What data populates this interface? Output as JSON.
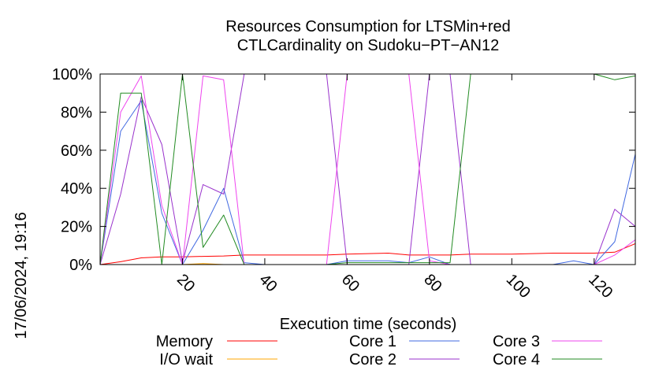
{
  "chart_data": {
    "type": "line",
    "title_line1": "Resources Consumption for LTSMin+red",
    "title_line2": "CTLCardinality on Sudoku−PT−AN12",
    "xlabel": "Execution time (seconds)",
    "ylabel": "",
    "timestamp": "17/06/2024, 19:16",
    "xlim": [
      0,
      130
    ],
    "ylim": [
      0,
      100
    ],
    "x_ticks": [
      20,
      40,
      60,
      80,
      100,
      120
    ],
    "x_tick_labels": [
      "20",
      "40",
      "60",
      "80",
      "100",
      "120"
    ],
    "y_ticks": [
      0,
      20,
      40,
      60,
      80,
      100
    ],
    "y_tick_labels": [
      "0%",
      "20%",
      "40%",
      "60%",
      "80%",
      "100%"
    ],
    "grid": false,
    "legend_position": "bottom",
    "series": [
      {
        "name": "Memory",
        "color": "#ff0000",
        "points": [
          [
            0,
            0
          ],
          [
            5,
            1.5
          ],
          [
            10,
            3.5
          ],
          [
            15,
            4
          ],
          [
            20,
            4
          ],
          [
            25,
            4.3
          ],
          [
            30,
            4.5
          ],
          [
            35,
            5
          ],
          [
            45,
            5
          ],
          [
            55,
            5
          ],
          [
            60,
            5.5
          ],
          [
            70,
            6
          ],
          [
            75,
            5
          ],
          [
            80,
            5
          ],
          [
            85,
            5
          ],
          [
            90,
            5.5
          ],
          [
            100,
            5.5
          ],
          [
            110,
            6
          ],
          [
            120,
            6
          ],
          [
            125,
            6.5
          ],
          [
            130,
            11
          ]
        ]
      },
      {
        "name": "I/O wait",
        "color": "#ffa500",
        "points": [
          [
            0,
            0
          ],
          [
            20,
            0
          ],
          [
            25,
            0.5
          ],
          [
            30,
            0
          ],
          [
            130,
            0
          ]
        ]
      },
      {
        "name": "Core 1",
        "color": "#4169e1",
        "points": [
          [
            0,
            0
          ],
          [
            5,
            70
          ],
          [
            10,
            86
          ],
          [
            15,
            27
          ],
          [
            20,
            0
          ],
          [
            25,
            18
          ],
          [
            30,
            40
          ],
          [
            35,
            1
          ],
          [
            40,
            0
          ],
          [
            55,
            0
          ],
          [
            60,
            2
          ],
          [
            70,
            2
          ],
          [
            75,
            1
          ],
          [
            80,
            4
          ],
          [
            85,
            0
          ],
          [
            100,
            0
          ],
          [
            110,
            0
          ],
          [
            115,
            2
          ],
          [
            120,
            0
          ],
          [
            125,
            12
          ],
          [
            130,
            58
          ]
        ]
      },
      {
        "name": "Core 2",
        "color": "#9932cc",
        "points": [
          [
            0,
            0
          ],
          [
            5,
            37
          ],
          [
            10,
            88
          ],
          [
            15,
            63
          ],
          [
            20,
            1
          ],
          [
            25,
            42
          ],
          [
            30,
            37
          ],
          [
            35,
            100
          ],
          [
            40,
            100
          ],
          [
            55,
            100
          ],
          [
            60,
            0
          ],
          [
            75,
            0
          ],
          [
            80,
            100
          ],
          [
            85,
            100
          ],
          [
            90,
            0
          ],
          [
            120,
            0
          ],
          [
            125,
            29
          ],
          [
            130,
            20
          ]
        ]
      },
      {
        "name": "Core 3",
        "color": "#ee44ee",
        "points": [
          [
            0,
            0
          ],
          [
            5,
            80
          ],
          [
            10,
            99
          ],
          [
            15,
            31
          ],
          [
            20,
            0
          ],
          [
            25,
            99
          ],
          [
            30,
            97
          ],
          [
            35,
            0
          ],
          [
            55,
            0
          ],
          [
            60,
            100
          ],
          [
            70,
            100
          ],
          [
            75,
            100
          ],
          [
            80,
            2
          ],
          [
            85,
            0
          ],
          [
            120,
            0
          ],
          [
            125,
            5
          ],
          [
            130,
            13
          ]
        ]
      },
      {
        "name": "Core 4",
        "color": "#228b22",
        "points": [
          [
            0,
            0
          ],
          [
            5,
            90
          ],
          [
            10,
            90
          ],
          [
            15,
            0
          ],
          [
            20,
            100
          ],
          [
            25,
            9
          ],
          [
            30,
            26
          ],
          [
            35,
            0
          ],
          [
            55,
            0
          ],
          [
            60,
            1
          ],
          [
            85,
            1
          ],
          [
            90,
            100
          ],
          [
            100,
            100
          ],
          [
            120,
            100
          ],
          [
            125,
            97
          ],
          [
            130,
            99
          ]
        ]
      }
    ]
  }
}
